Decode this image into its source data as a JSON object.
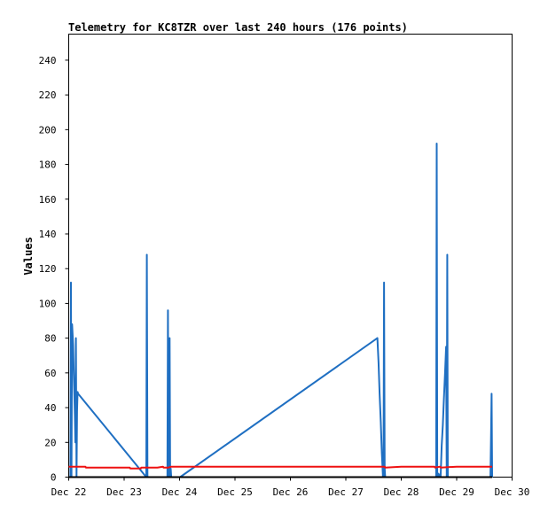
{
  "chart_data": {
    "type": "line",
    "title": "Telemetry for KC8TZR over last 240 hours (176 points)",
    "xlabel": "",
    "ylabel": "Values",
    "x_tick_labels": [
      "Dec 22",
      "Dec 23",
      "Dec 24",
      "Dec 25",
      "Dec 26",
      "Dec 27",
      "Dec 28",
      "Dec 29",
      "Dec 30"
    ],
    "y_ticks": [
      0,
      20,
      40,
      60,
      80,
      100,
      120,
      140,
      160,
      180,
      200,
      220,
      240
    ],
    "xlim": [
      0,
      8
    ],
    "ylim": [
      0,
      255
    ],
    "grid": false,
    "colors": {
      "blue": "#1f6fc2",
      "red": "#ee1111",
      "black": "#000000"
    },
    "series": [
      {
        "color": "#1f6fc2",
        "x": [
          0.03,
          0.04,
          0.05,
          0.06,
          0.08,
          0.09,
          0.1,
          0.11,
          0.12,
          0.13,
          0.14,
          0.15,
          0.16,
          0.17,
          1.4,
          1.41,
          1.42,
          1.43,
          1.78,
          1.79,
          1.8,
          1.81,
          1.82,
          1.83,
          1.84,
          1.85,
          1.86,
          2.01,
          5.57,
          5.59,
          5.61,
          5.63,
          5.65,
          5.67,
          5.68,
          5.69,
          5.7,
          5.71,
          6.63,
          6.64,
          6.65,
          6.66,
          6.67,
          6.71,
          6.73,
          6.75,
          6.77,
          6.79,
          6.81,
          6.82,
          6.83,
          6.84,
          6.85,
          6.86,
          6.87,
          7.61,
          7.62,
          7.63,
          7.64
        ],
        "y": [
          0,
          112,
          0,
          88,
          76,
          62,
          48,
          36,
          20,
          80,
          0,
          38,
          49,
          48,
          0,
          128,
          0,
          0,
          0,
          96,
          0,
          0,
          80,
          0,
          5,
          0,
          0,
          0,
          80,
          66,
          48,
          32,
          14,
          0,
          0,
          112,
          5,
          0,
          0,
          192,
          0,
          0,
          2,
          0,
          18,
          30,
          45,
          60,
          75,
          0,
          128,
          0,
          0,
          0,
          0,
          0,
          25,
          48,
          0
        ]
      },
      {
        "color": "#ee1111",
        "x": [
          0.0,
          0.3,
          0.31,
          0.5,
          1.0,
          1.1,
          1.11,
          1.3,
          1.31,
          1.6,
          1.7,
          1.71,
          1.8,
          1.85,
          2.0,
          2.5,
          3.5,
          4.5,
          5.6,
          5.7,
          5.71,
          6.0,
          6.6,
          6.61,
          6.7,
          6.71,
          7.0,
          7.64
        ],
        "y": [
          6,
          6,
          5.5,
          5.5,
          5.5,
          5.5,
          5,
          5,
          5.5,
          5.5,
          6,
          5.5,
          5.5,
          6,
          6,
          6,
          6,
          6,
          6,
          6,
          5.5,
          6,
          6,
          5.5,
          6,
          5.5,
          6,
          6
        ]
      },
      {
        "color": "#000000",
        "x": [
          0.0,
          7.64
        ],
        "y": [
          0,
          0
        ]
      }
    ]
  }
}
